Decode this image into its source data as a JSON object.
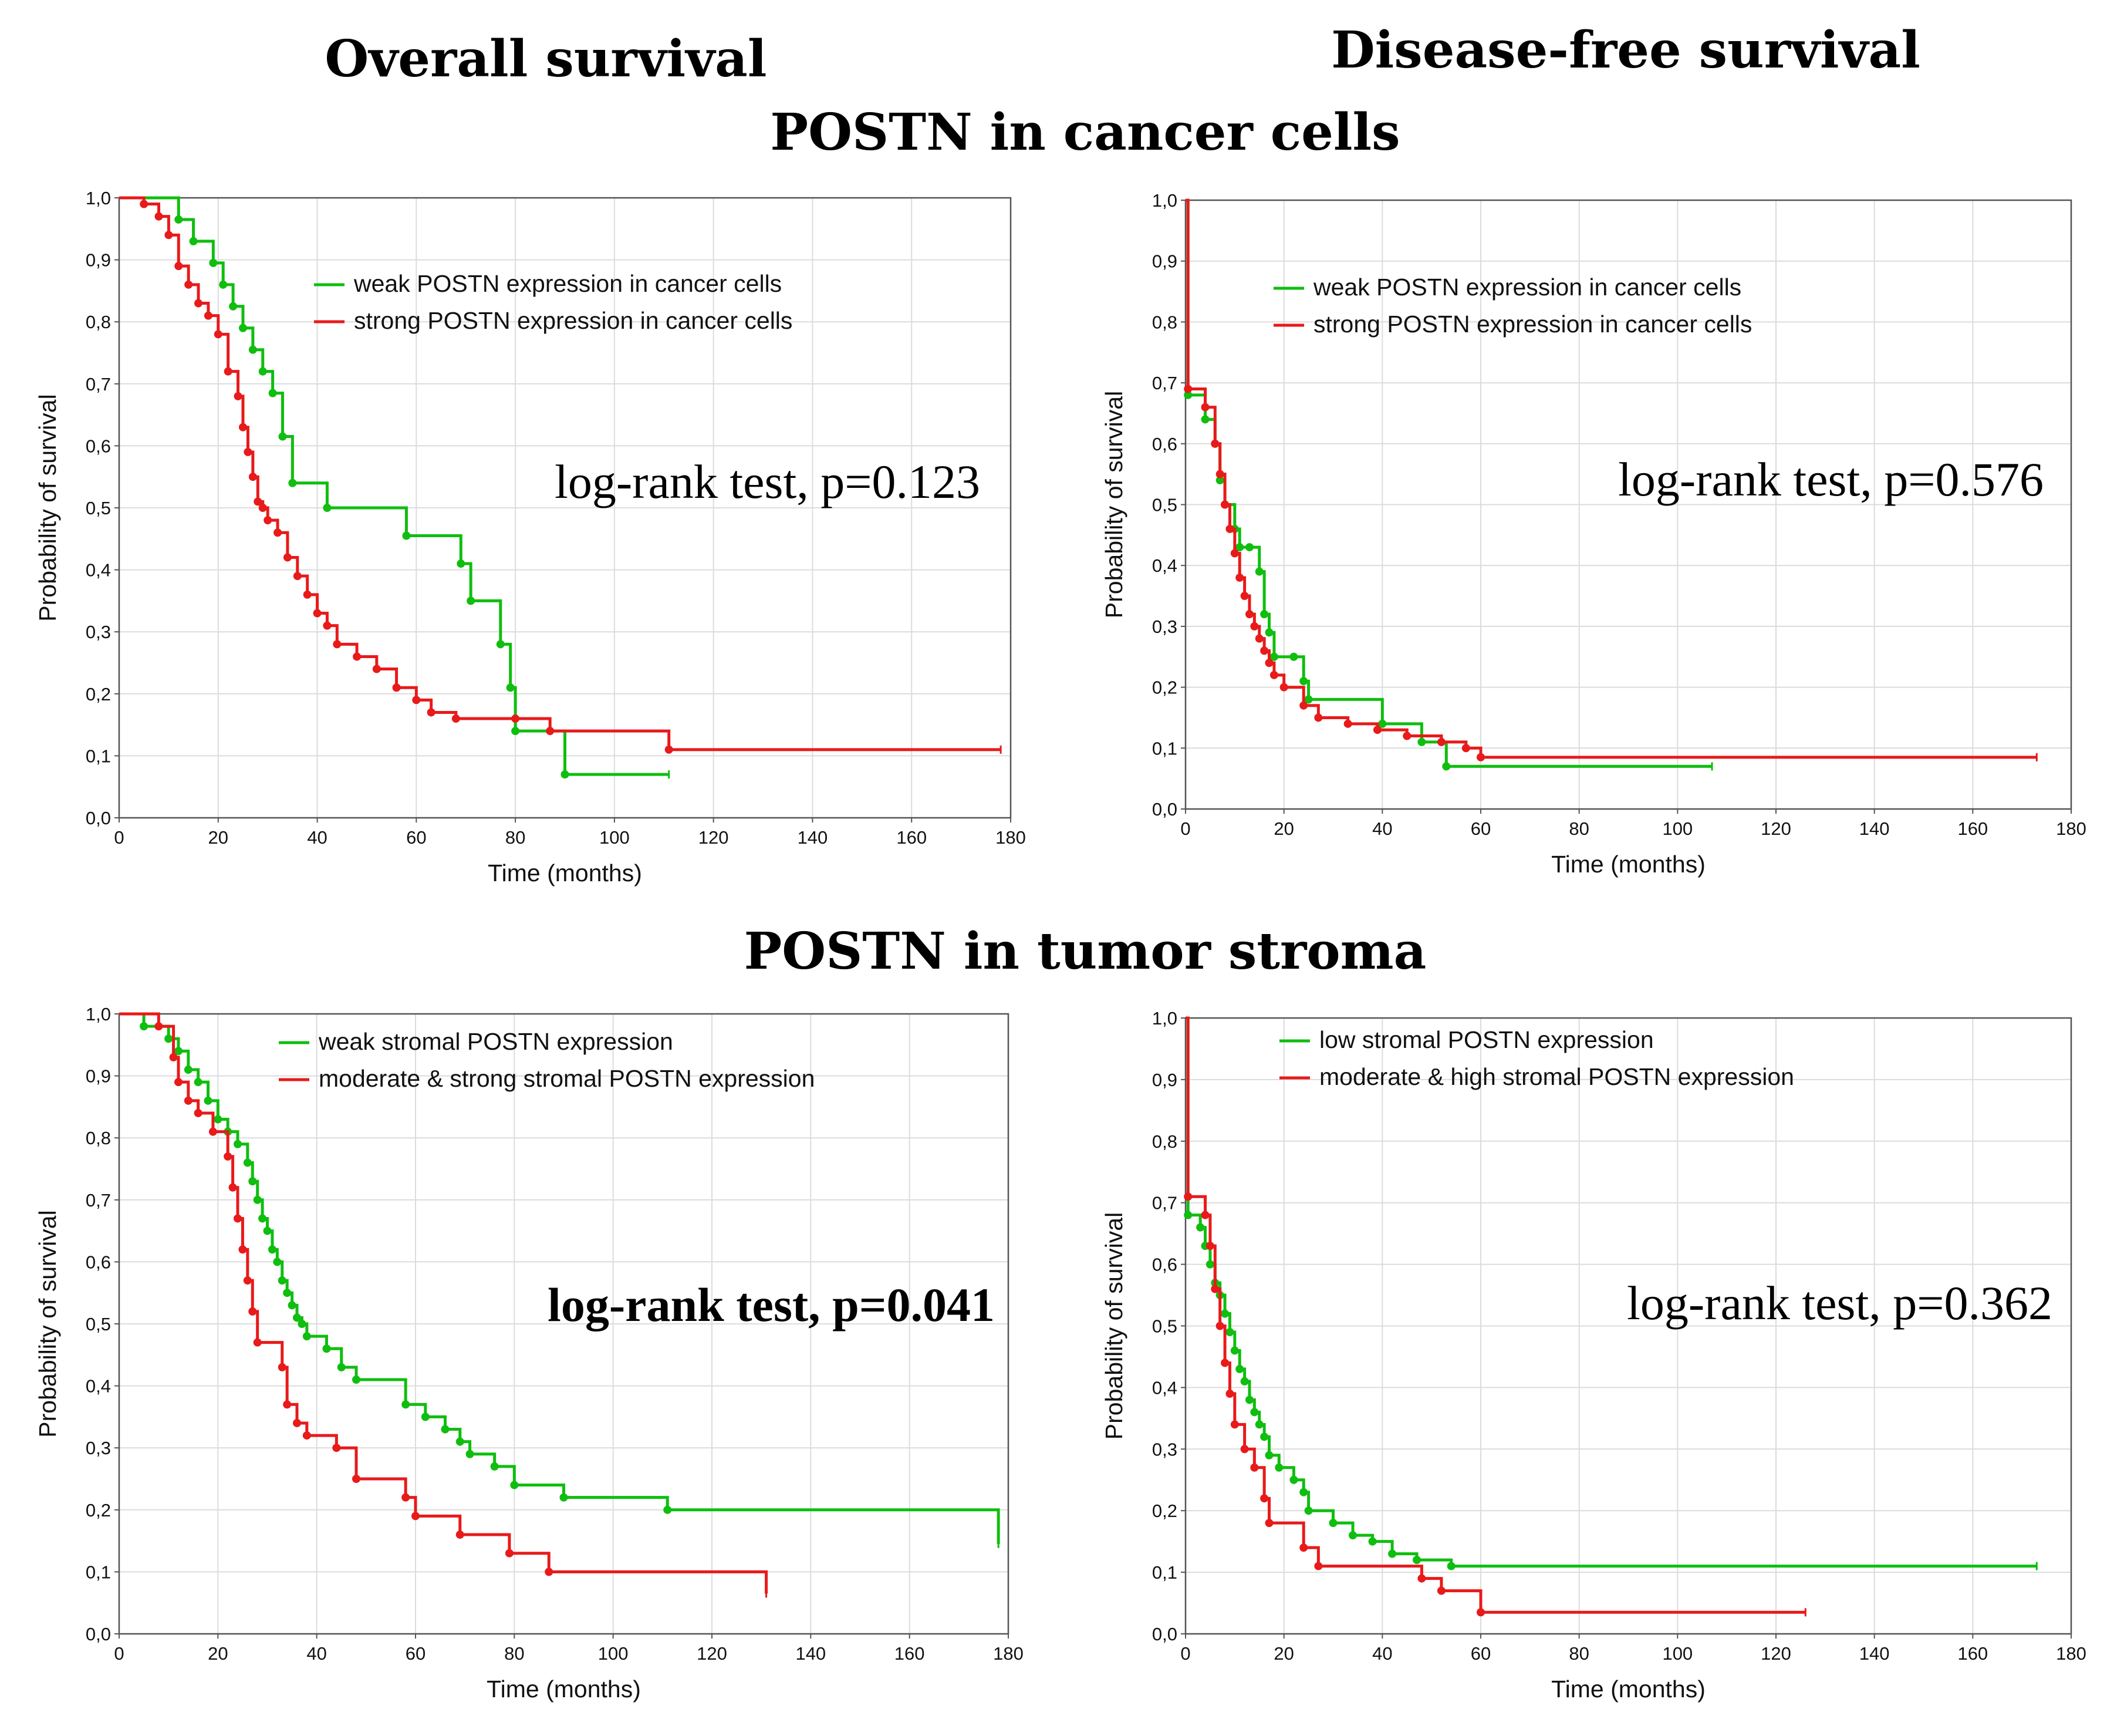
{
  "headers": {
    "overall": "Overall survival",
    "dfs": "Disease-free survival",
    "cancer_cells": "POSTN in cancer cells",
    "stroma": "POSTN in tumor stroma"
  },
  "colors": {
    "green": "#0fbe0f",
    "red": "#e81a1a"
  },
  "chart_data": [
    {
      "type": "line",
      "step": true,
      "panel": "top-left",
      "xlabel": "Time (months)",
      "ylabel": "Probability of survival",
      "xlim": [
        0,
        180
      ],
      "ylim": [
        0,
        1
      ],
      "xticks": [
        "0",
        "20",
        "40",
        "60",
        "80",
        "100",
        "120",
        "140",
        "160",
        "180"
      ],
      "yticks": [
        "0,0",
        "0,1",
        "0,2",
        "0,3",
        "0,4",
        "0,5",
        "0,6",
        "0,7",
        "0,8",
        "0,9",
        "1,0"
      ],
      "legend_position": "top-right",
      "stat_text": "log-rank test, p=0.123",
      "stat_bold": false,
      "series": [
        {
          "name": "weak POSTN expression in cancer cells",
          "color": "green",
          "x": [
            0,
            12,
            15,
            19,
            21,
            23,
            25,
            27,
            29,
            31,
            33,
            35,
            42,
            58,
            69,
            71,
            77,
            79,
            80,
            90,
            111
          ],
          "y": [
            1.0,
            0.965,
            0.93,
            0.895,
            0.86,
            0.825,
            0.79,
            0.755,
            0.72,
            0.685,
            0.615,
            0.54,
            0.5,
            0.455,
            0.41,
            0.35,
            0.28,
            0.21,
            0.14,
            0.07,
            0.07
          ]
        },
        {
          "name": "strong POSTN expression in cancer cells",
          "color": "red",
          "x": [
            0,
            5,
            8,
            10,
            12,
            14,
            16,
            18,
            20,
            22,
            24,
            25,
            26,
            27,
            28,
            29,
            30,
            32,
            34,
            36,
            38,
            40,
            42,
            44,
            48,
            52,
            56,
            60,
            63,
            68,
            80,
            87,
            111,
            178
          ],
          "y": [
            1.0,
            0.99,
            0.97,
            0.94,
            0.89,
            0.86,
            0.83,
            0.81,
            0.78,
            0.72,
            0.68,
            0.63,
            0.59,
            0.55,
            0.51,
            0.5,
            0.48,
            0.46,
            0.42,
            0.39,
            0.36,
            0.33,
            0.31,
            0.28,
            0.26,
            0.24,
            0.21,
            0.19,
            0.17,
            0.16,
            0.16,
            0.14,
            0.11,
            0.11
          ]
        }
      ]
    },
    {
      "type": "line",
      "step": true,
      "panel": "top-right",
      "xlabel": "Time (months)",
      "ylabel": "Probability of survival",
      "xlim": [
        0,
        180
      ],
      "ylim": [
        0,
        1
      ],
      "xticks": [
        "0",
        "20",
        "40",
        "60",
        "80",
        "100",
        "120",
        "140",
        "160",
        "180"
      ],
      "yticks": [
        "0,0",
        "0,1",
        "0,2",
        "0,3",
        "0,4",
        "0,5",
        "0,6",
        "0,7",
        "0,8",
        "0,9",
        "1,0"
      ],
      "legend_position": "top-right",
      "stat_text": "log-rank test, p=0.576",
      "stat_bold": false,
      "series": [
        {
          "name": "weak POSTN expression in cancer cells",
          "color": "green",
          "x": [
            0,
            0.5,
            4,
            6,
            7,
            8,
            10,
            11,
            13,
            15,
            16,
            17,
            18,
            22,
            24,
            25,
            40,
            48,
            53,
            107
          ],
          "y": [
            1.0,
            0.68,
            0.64,
            0.6,
            0.54,
            0.5,
            0.46,
            0.43,
            0.43,
            0.39,
            0.32,
            0.29,
            0.25,
            0.25,
            0.21,
            0.18,
            0.14,
            0.11,
            0.07,
            0.07
          ]
        },
        {
          "name": "strong POSTN expression in cancer cells",
          "color": "red",
          "x": [
            0,
            0.5,
            4,
            6,
            7,
            8,
            9,
            10,
            11,
            12,
            13,
            14,
            15,
            16,
            17,
            18,
            20,
            24,
            27,
            33,
            39,
            45,
            52,
            57,
            60,
            173
          ],
          "y": [
            1.0,
            0.69,
            0.66,
            0.6,
            0.55,
            0.5,
            0.46,
            0.42,
            0.38,
            0.35,
            0.32,
            0.3,
            0.28,
            0.26,
            0.24,
            0.22,
            0.2,
            0.17,
            0.15,
            0.14,
            0.13,
            0.12,
            0.11,
            0.1,
            0.085,
            0.085
          ]
        }
      ]
    },
    {
      "type": "line",
      "step": true,
      "panel": "bottom-left",
      "xlabel": "Time (months)",
      "ylabel": "Probability of survival",
      "xlim": [
        0,
        180
      ],
      "ylim": [
        0,
        1
      ],
      "xticks": [
        "0",
        "20",
        "40",
        "60",
        "80",
        "100",
        "120",
        "140",
        "160",
        "180"
      ],
      "yticks": [
        "0,0",
        "0,1",
        "0,2",
        "0,3",
        "0,4",
        "0,5",
        "0,6",
        "0,7",
        "0,8",
        "0,9",
        "1,0"
      ],
      "legend_position": "top-right",
      "stat_text": "log-rank test, p=0.041",
      "stat_bold": true,
      "series": [
        {
          "name": "weak stromal POSTN expression",
          "color": "green",
          "x": [
            0,
            5,
            10,
            12,
            14,
            16,
            18,
            20,
            22,
            24,
            26,
            27,
            28,
            29,
            30,
            31,
            32,
            33,
            34,
            35,
            36,
            37,
            38,
            42,
            45,
            48,
            58,
            62,
            66,
            69,
            71,
            76,
            80,
            90,
            111,
            178
          ],
          "y": [
            1.0,
            0.98,
            0.96,
            0.94,
            0.91,
            0.89,
            0.86,
            0.83,
            0.81,
            0.79,
            0.76,
            0.73,
            0.7,
            0.67,
            0.65,
            0.62,
            0.6,
            0.57,
            0.55,
            0.53,
            0.51,
            0.5,
            0.48,
            0.46,
            0.43,
            0.41,
            0.37,
            0.35,
            0.33,
            0.31,
            0.29,
            0.27,
            0.24,
            0.22,
            0.2,
            0.145
          ]
        },
        {
          "name": "moderate & strong stromal POSTN expression",
          "color": "red",
          "x": [
            0,
            8,
            11,
            12,
            14,
            16,
            19,
            22,
            23,
            24,
            25,
            26,
            27,
            28,
            33,
            34,
            36,
            38,
            44,
            48,
            58,
            60,
            69,
            79,
            87,
            131
          ],
          "y": [
            1.0,
            0.98,
            0.93,
            0.89,
            0.86,
            0.84,
            0.81,
            0.77,
            0.72,
            0.67,
            0.62,
            0.57,
            0.52,
            0.47,
            0.43,
            0.37,
            0.34,
            0.32,
            0.3,
            0.25,
            0.22,
            0.19,
            0.16,
            0.13,
            0.1,
            0.065
          ]
        }
      ]
    },
    {
      "type": "line",
      "step": true,
      "panel": "bottom-right",
      "xlabel": "Time (months)",
      "ylabel": "Probability of survival",
      "xlim": [
        0,
        180
      ],
      "ylim": [
        0,
        1
      ],
      "xticks": [
        "0",
        "20",
        "40",
        "60",
        "80",
        "100",
        "120",
        "140",
        "160",
        "180"
      ],
      "yticks": [
        "0,0",
        "0,1",
        "0,2",
        "0,3",
        "0,4",
        "0,5",
        "0,6",
        "0,7",
        "0,8",
        "0,9",
        "1,0"
      ],
      "legend_position": "top-right",
      "stat_text": "log-rank test, p=0.362",
      "stat_bold": false,
      "series": [
        {
          "name": "low stromal POSTN expression",
          "color": "green",
          "x": [
            0,
            0.5,
            3,
            4,
            5,
            6,
            7,
            8,
            9,
            10,
            11,
            12,
            13,
            14,
            15,
            16,
            17,
            19,
            22,
            24,
            25,
            30,
            34,
            38,
            42,
            47,
            54,
            173
          ],
          "y": [
            1.0,
            0.68,
            0.66,
            0.63,
            0.6,
            0.57,
            0.55,
            0.52,
            0.49,
            0.46,
            0.43,
            0.41,
            0.38,
            0.36,
            0.34,
            0.32,
            0.29,
            0.27,
            0.25,
            0.23,
            0.2,
            0.18,
            0.16,
            0.15,
            0.13,
            0.12,
            0.11,
            0.11
          ]
        },
        {
          "name": "moderate & high stromal POSTN expression",
          "color": "red",
          "x": [
            0,
            0.5,
            4,
            5,
            6,
            7,
            8,
            9,
            10,
            12,
            14,
            16,
            17,
            24,
            27,
            48,
            52,
            60,
            126
          ],
          "y": [
            1.0,
            0.71,
            0.68,
            0.63,
            0.56,
            0.5,
            0.44,
            0.39,
            0.34,
            0.3,
            0.27,
            0.22,
            0.18,
            0.14,
            0.11,
            0.09,
            0.07,
            0.035,
            0.035
          ]
        }
      ]
    }
  ]
}
